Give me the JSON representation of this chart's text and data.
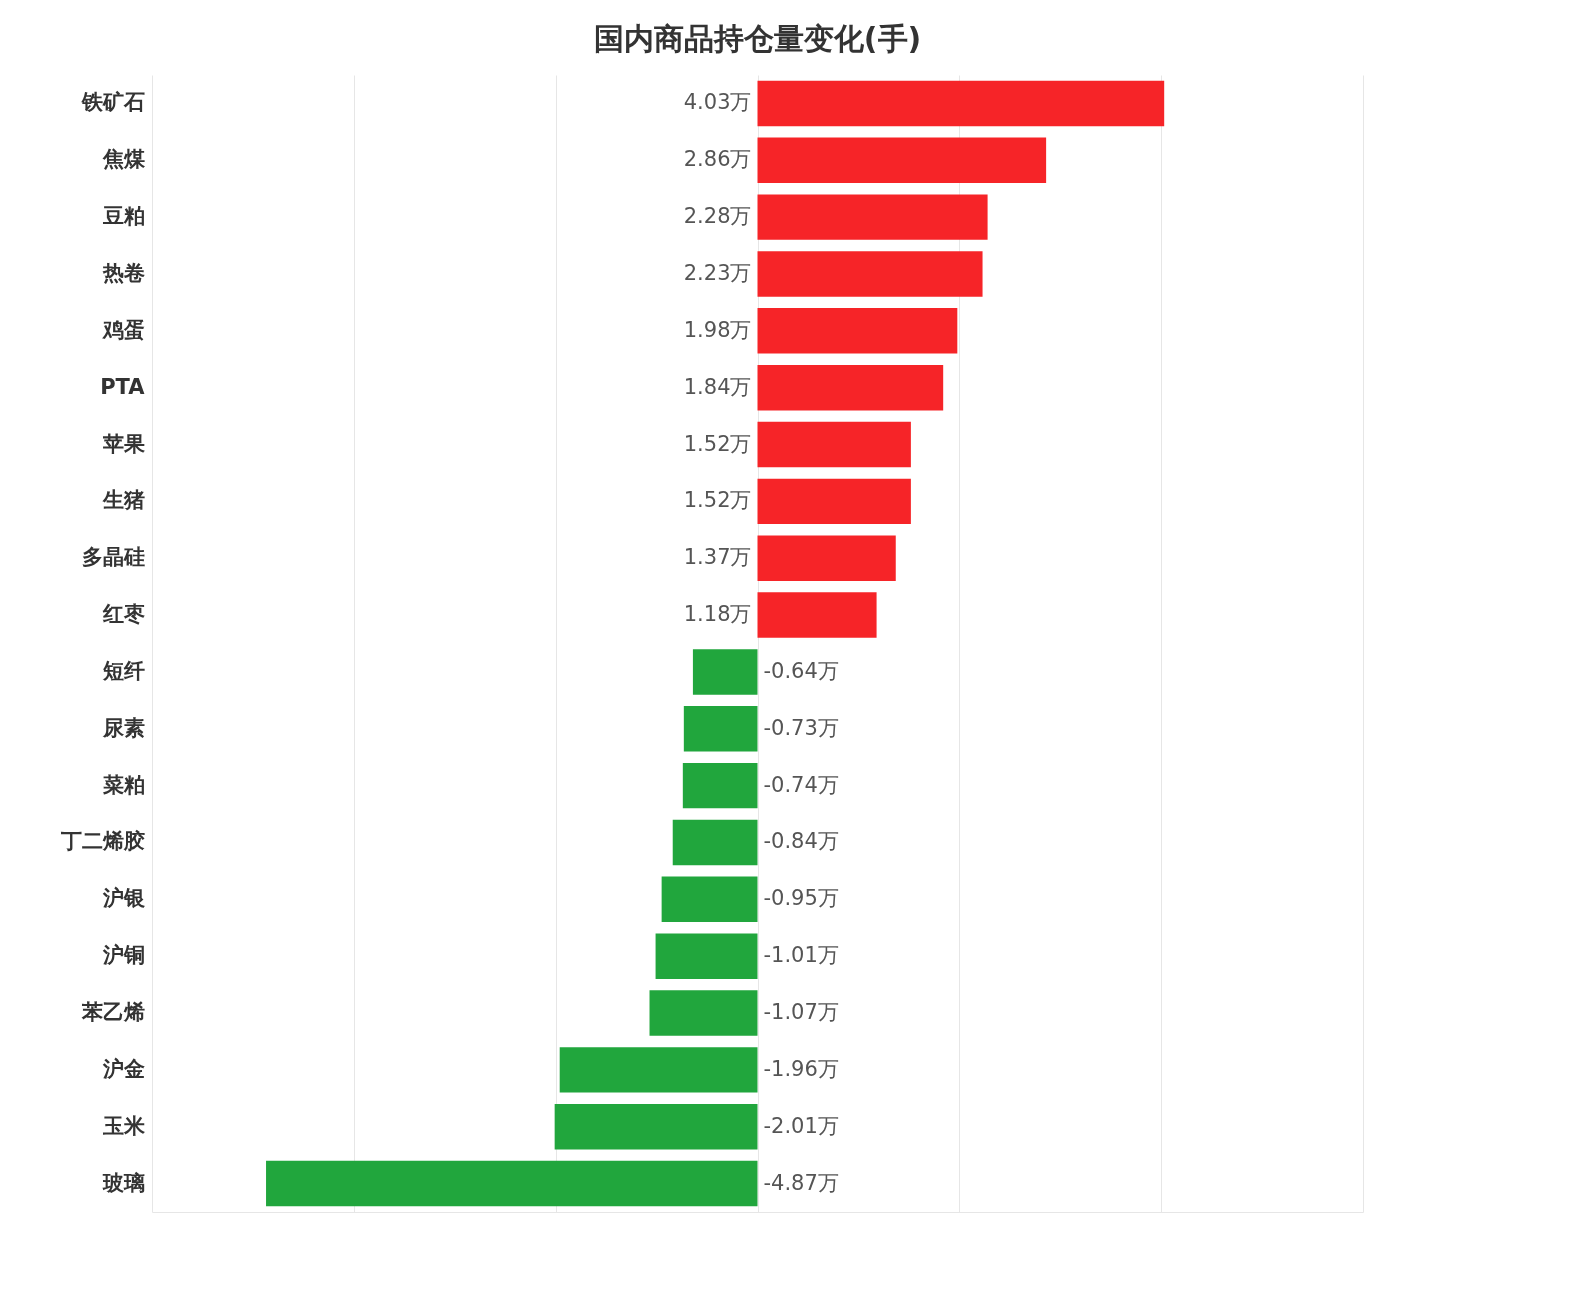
{
  "chart_data": {
    "type": "bar",
    "orientation": "horizontal",
    "title": "国内商品持仓量变化(手)",
    "categories": [
      "铁矿石",
      "焦煤",
      "豆粕",
      "热卷",
      "鸡蛋",
      "PTA",
      "苹果",
      "生猪",
      "多晶硅",
      "红枣",
      "短纤",
      "尿素",
      "菜粕",
      "丁二烯胶",
      "沪银",
      "沪铜",
      "苯乙烯",
      "沪金",
      "玉米",
      "玻璃"
    ],
    "values": [
      4.03,
      2.86,
      2.28,
      2.23,
      1.98,
      1.84,
      1.52,
      1.52,
      1.37,
      1.18,
      -0.64,
      -0.73,
      -0.74,
      -0.84,
      -0.95,
      -1.01,
      -1.07,
      -1.96,
      -2.01,
      -4.87
    ],
    "value_labels": [
      "4.03万",
      "2.86万",
      "2.28万",
      "2.23万",
      "1.98万",
      "1.84万",
      "1.52万",
      "1.52万",
      "1.37万",
      "1.18万",
      "-0.64万",
      "-0.73万",
      "-0.74万",
      "-0.84万",
      "-0.95万",
      "-1.01万",
      "-1.07万",
      "-1.96万",
      "-2.01万",
      "-4.87万"
    ],
    "colors": [
      "#f62428",
      "#f62428",
      "#f62428",
      "#f62428",
      "#f62428",
      "#f62428",
      "#f62428",
      "#f62428",
      "#f62428",
      "#f62428",
      "#21a63d",
      "#21a63d",
      "#21a63d",
      "#21a63d",
      "#21a63d",
      "#21a63d",
      "#21a63d",
      "#21a63d",
      "#21a63d",
      "#21a63d"
    ],
    "xlim": [
      -6,
      6
    ],
    "xticks": [
      {
        "value": -6,
        "label": null
      },
      {
        "value": -4,
        "label": null
      },
      {
        "value": -2,
        "label": null
      },
      {
        "value": 0,
        "label": null
      },
      {
        "value": 2,
        "label": null
      },
      {
        "value": 4,
        "label": null
      },
      {
        "value": 6,
        "label": null
      }
    ],
    "tick_labels": "y",
    "grid": "x"
  }
}
